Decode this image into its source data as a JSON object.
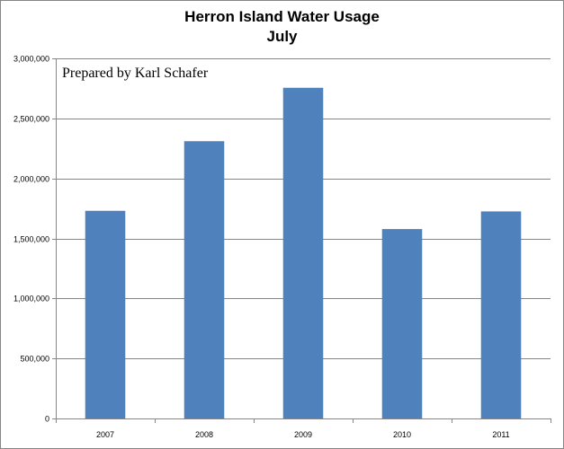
{
  "chart_data": {
    "type": "bar",
    "title": "Herron Island Water Usage",
    "subtitle": "July",
    "annotation": "Prepared by Karl Schafer",
    "categories": [
      "2007",
      "2008",
      "2009",
      "2010",
      "2011"
    ],
    "values": [
      1730000,
      2310000,
      2755000,
      1578000,
      1725000
    ],
    "ylim": [
      0,
      3000000
    ],
    "yticks": [
      0,
      500000,
      1000000,
      1500000,
      2000000,
      2500000,
      3000000
    ],
    "ytick_labels": [
      "0",
      "500,000",
      "1,000,000",
      "1,500,000",
      "2,000,000",
      "2,500,000",
      "3,000,000"
    ],
    "xlabel": "",
    "ylabel": "",
    "grid": true,
    "legend": "none",
    "bar_color": "#4F81BD",
    "grid_color": "#868686"
  }
}
